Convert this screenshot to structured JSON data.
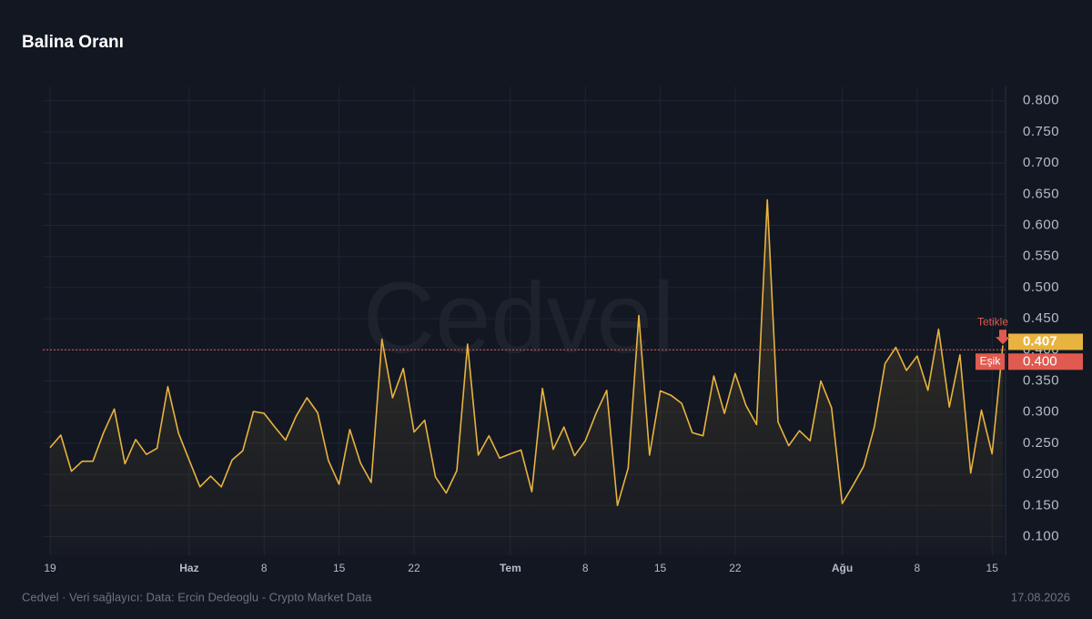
{
  "chart_data": {
    "type": "line",
    "title": "Balina Oranı",
    "watermark": "Cedvel",
    "footer": "Cedvel · Veri sağlayıcı: Data: Ercin Dedeoglu - Crypto Market Data",
    "date": "17.08.2026",
    "categories": [
      "19",
      null,
      null,
      null,
      null,
      null,
      null,
      null,
      null,
      null,
      null,
      null,
      null,
      "Haz",
      null,
      null,
      null,
      null,
      null,
      null,
      "8",
      null,
      null,
      null,
      null,
      null,
      null,
      "15",
      null,
      null,
      null,
      null,
      null,
      null,
      "22",
      null,
      null,
      null,
      null,
      null,
      null,
      null,
      null,
      "Tem",
      null,
      null,
      null,
      null,
      null,
      null,
      "8",
      null,
      null,
      null,
      null,
      null,
      null,
      "15",
      null,
      null,
      null,
      null,
      null,
      null,
      "22",
      null,
      null,
      null,
      null,
      null,
      null,
      null,
      null,
      null,
      "Ağu",
      null,
      null,
      null,
      null,
      null,
      null,
      "8",
      null,
      null,
      null,
      null,
      null,
      null,
      "15",
      null
    ],
    "series": [
      {
        "name": "Balina Oranı",
        "color": "#e8b33f",
        "values": [
          0.243,
          0.263,
          0.205,
          0.221,
          0.221,
          0.267,
          0.305,
          0.217,
          0.256,
          0.232,
          0.242,
          0.341,
          0.266,
          0.223,
          0.18,
          0.197,
          0.18,
          0.223,
          0.238,
          0.301,
          0.298,
          0.276,
          0.255,
          0.294,
          0.323,
          0.299,
          0.222,
          0.184,
          0.272,
          0.218,
          0.187,
          0.417,
          0.323,
          0.37,
          0.268,
          0.287,
          0.196,
          0.17,
          0.206,
          0.409,
          0.231,
          0.262,
          0.226,
          0.233,
          0.239,
          0.172,
          0.338,
          0.24,
          0.276,
          0.23,
          0.254,
          0.298,
          0.335,
          0.15,
          0.21,
          0.455,
          0.231,
          0.334,
          0.327,
          0.314,
          0.267,
          0.262,
          0.358,
          0.298,
          0.362,
          0.311,
          0.28,
          0.641,
          0.284,
          0.246,
          0.27,
          0.254,
          0.35,
          0.307,
          0.153,
          0.182,
          0.213,
          0.276,
          0.378,
          0.404,
          0.367,
          0.39,
          0.335,
          0.433,
          0.308,
          0.392,
          0.202,
          0.303,
          0.233,
          0.407
        ]
      }
    ],
    "ylim": [
      0.07,
      0.823
    ],
    "yticks": [
      {
        "value": 0.1,
        "label": "0.100"
      },
      {
        "value": 0.15,
        "label": "0.150"
      },
      {
        "value": 0.2,
        "label": "0.200"
      },
      {
        "value": 0.25,
        "label": "0.250"
      },
      {
        "value": 0.3,
        "label": "0.300"
      },
      {
        "value": 0.35,
        "label": "0.350"
      },
      {
        "value": 0.4,
        "label": "0.400"
      },
      {
        "value": 0.45,
        "label": "0.450"
      },
      {
        "value": 0.5,
        "label": "0.500"
      },
      {
        "value": 0.55,
        "label": "0.550"
      },
      {
        "value": 0.6,
        "label": "0.600"
      },
      {
        "value": 0.65,
        "label": "0.650"
      },
      {
        "value": 0.7,
        "label": "0.700"
      },
      {
        "value": 0.75,
        "label": "0.750"
      },
      {
        "value": 0.8,
        "label": "0.800"
      }
    ],
    "grid": true,
    "threshold": {
      "name": "Eşik",
      "value": 0.4,
      "label": "0.400",
      "color": "#e05a4f"
    },
    "trigger": "Tetikle"
  }
}
